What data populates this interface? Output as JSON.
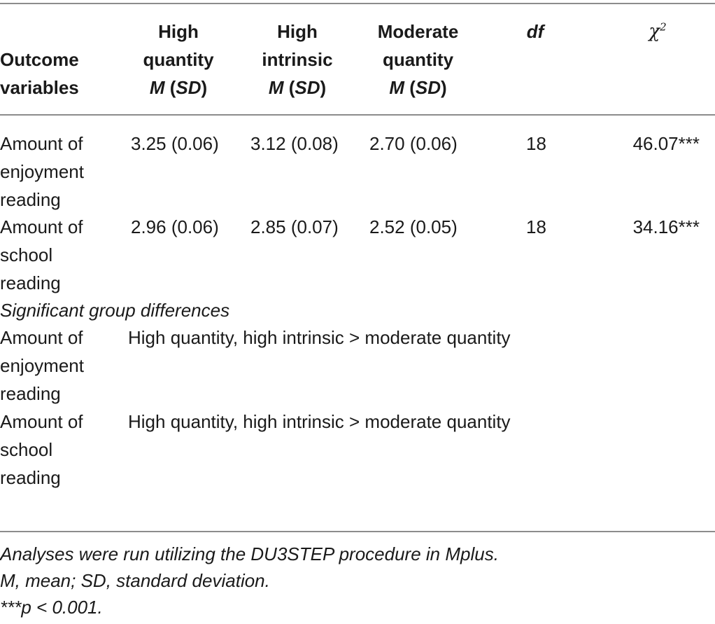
{
  "header": {
    "outcome": [
      "Outcome",
      "variables"
    ],
    "col1": {
      "l1": "High",
      "l2": "quantity",
      "m": "M",
      "sd": "SD"
    },
    "col2": {
      "l1": "High",
      "l2": "intrinsic",
      "m": "M",
      "sd": "SD"
    },
    "col3": {
      "l1": "Moderate",
      "l2": "quantity",
      "m": "M",
      "sd": "SD"
    },
    "df": "df",
    "chi": "χ",
    "chi_sup": "2"
  },
  "rows": [
    {
      "label": [
        "Amount of",
        "enjoyment",
        "reading"
      ],
      "c1": "3.25 (0.06)",
      "c2": "3.12 (0.08)",
      "c3": "2.70 (0.06)",
      "df": "18",
      "chi": "46.07***"
    },
    {
      "label": [
        "Amount of",
        "school",
        "reading"
      ],
      "c1": "2.96 (0.06)",
      "c2": "2.85 (0.07)",
      "c3": "2.52 (0.05)",
      "df": "18",
      "chi": "34.16***"
    }
  ],
  "section_title": "Significant group differences",
  "diff_rows": [
    {
      "label": [
        "Amount of",
        "enjoyment",
        "reading"
      ],
      "text": "High quantity, high intrinsic > moderate quantity"
    },
    {
      "label": [
        "Amount of",
        "school",
        "reading"
      ],
      "text": "High quantity, high intrinsic > moderate quantity"
    }
  ],
  "footnotes": [
    "Analyses were run utilizing the DU3STEP procedure in Mplus.",
    "M, mean; SD, standard deviation.",
    "***p < 0.001."
  ]
}
